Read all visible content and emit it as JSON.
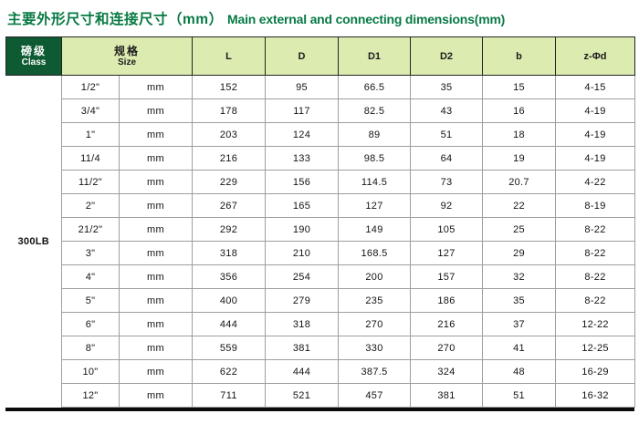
{
  "title": {
    "zh": "主要外形尺寸和连接尺寸（mm）",
    "en": "Main external and connecting dimensions(mm)"
  },
  "colors": {
    "title_green": "#077a43",
    "header_cell_green": "#0d5a33",
    "header_bg_green": "#dcebb0",
    "grid_line": "#9e9e9e",
    "dark_border": "#242424"
  },
  "table": {
    "class_header": {
      "zh": "磅级",
      "en": "Class"
    },
    "size_header": {
      "zh": "规格",
      "en": "Size"
    },
    "dim_columns": [
      "L",
      "D",
      "D1",
      "D2",
      "b",
      "z-Φd"
    ],
    "class_value": "300LB",
    "rows": [
      [
        "1/2\"",
        "mm",
        "152",
        "95",
        "66.5",
        "35",
        "15",
        "4-15"
      ],
      [
        "3/4\"",
        "mm",
        "178",
        "117",
        "82.5",
        "43",
        "16",
        "4-19"
      ],
      [
        "1\"",
        "mm",
        "203",
        "124",
        "89",
        "51",
        "18",
        "4-19"
      ],
      [
        "11/4",
        "mm",
        "216",
        "133",
        "98.5",
        "64",
        "19",
        "4-19"
      ],
      [
        "11/2\"",
        "mm",
        "229",
        "156",
        "114.5",
        "73",
        "20.7",
        "4-22"
      ],
      [
        "2\"",
        "mm",
        "267",
        "165",
        "127",
        "92",
        "22",
        "8-19"
      ],
      [
        "21/2\"",
        "mm",
        "292",
        "190",
        "149",
        "105",
        "25",
        "8-22"
      ],
      [
        "3\"",
        "mm",
        "318",
        "210",
        "168.5",
        "127",
        "29",
        "8-22"
      ],
      [
        "4\"",
        "mm",
        "356",
        "254",
        "200",
        "157",
        "32",
        "8-22"
      ],
      [
        "5\"",
        "mm",
        "400",
        "279",
        "235",
        "186",
        "35",
        "8-22"
      ],
      [
        "6\"",
        "mm",
        "444",
        "318",
        "270",
        "216",
        "37",
        "12-22"
      ],
      [
        "8\"",
        "mm",
        "559",
        "381",
        "330",
        "270",
        "41",
        "12-25"
      ],
      [
        "10\"",
        "mm",
        "622",
        "444",
        "387.5",
        "324",
        "48",
        "16-29"
      ],
      [
        "12\"",
        "mm",
        "711",
        "521",
        "457",
        "381",
        "51",
        "16-32"
      ]
    ]
  }
}
